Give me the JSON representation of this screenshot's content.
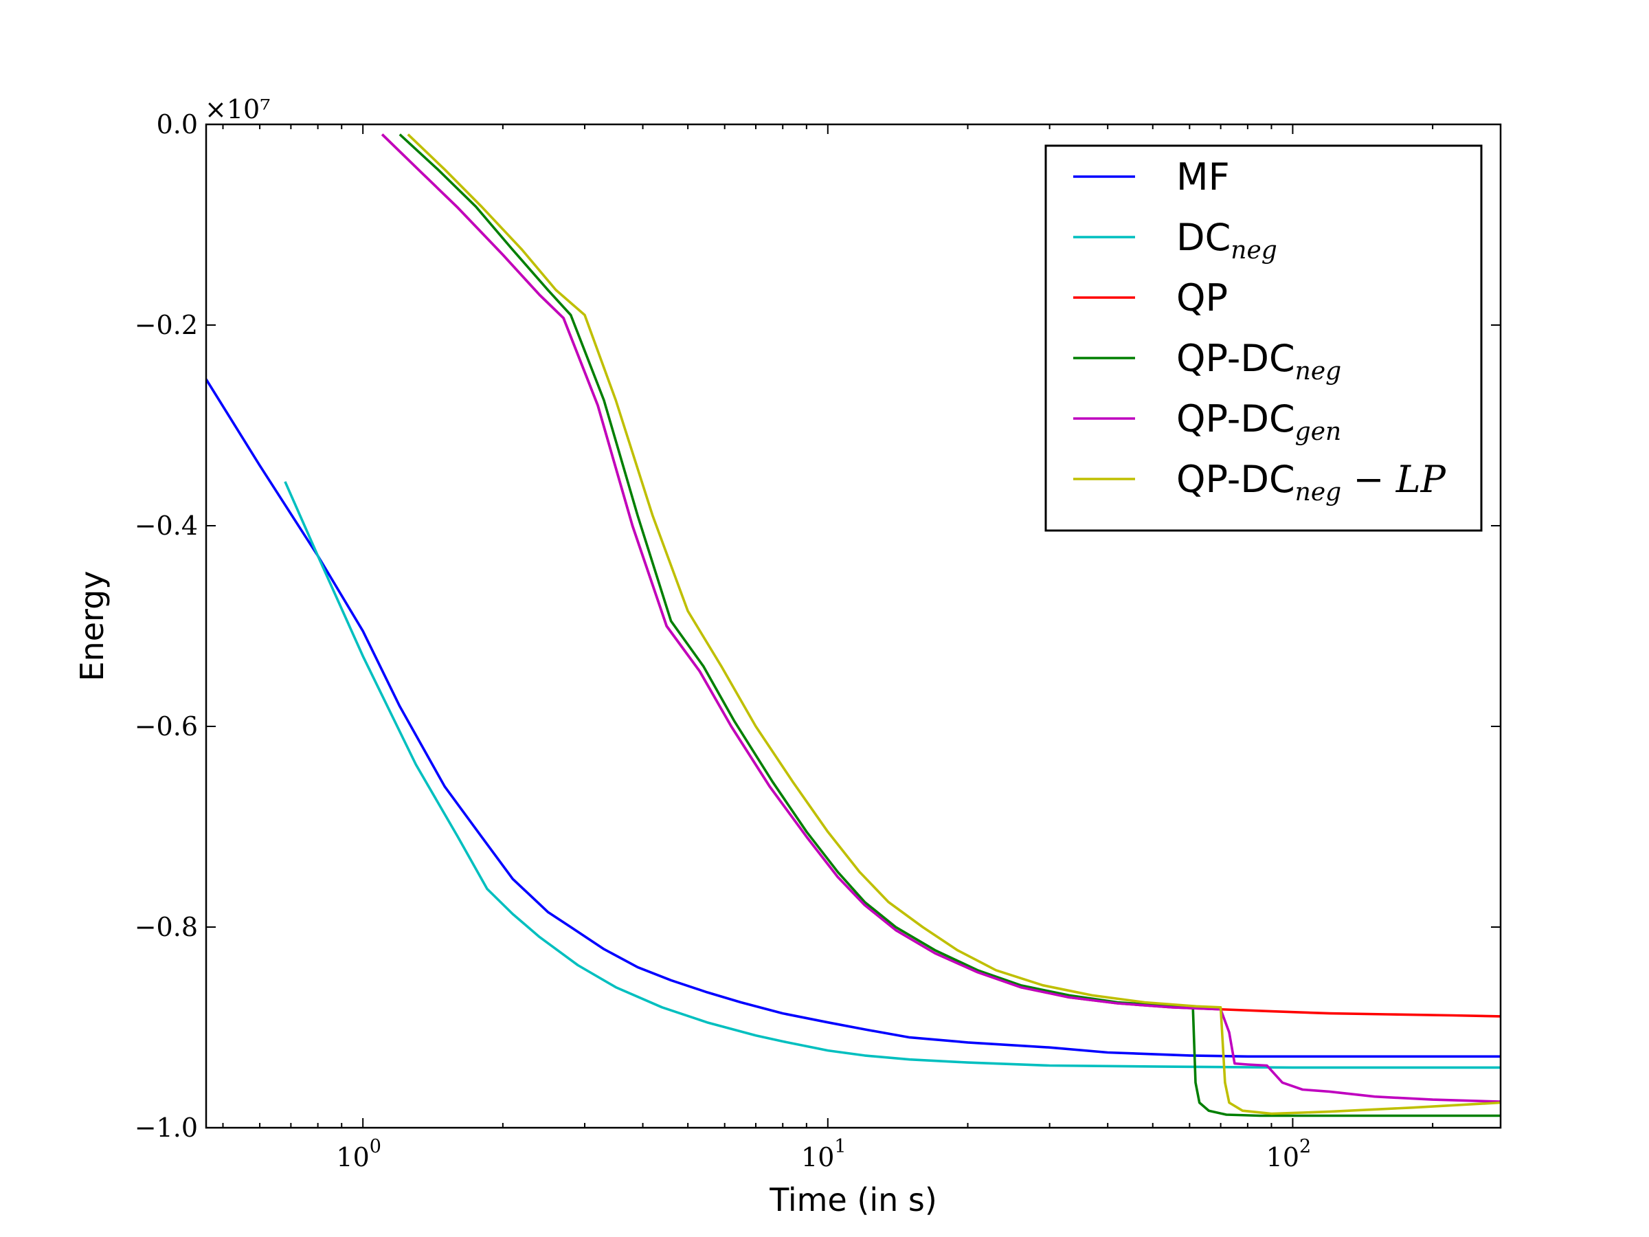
{
  "chart_data": {
    "type": "line",
    "title": "",
    "xlabel": "Time (in s)",
    "ylabel": "Energy",
    "xscale": "log",
    "xlim": [
      0.46,
      280
    ],
    "ylim": [
      -1.0,
      0.0
    ],
    "y_offset_label": "×10⁷",
    "x_ticks": [
      {
        "value": 1,
        "base": "10",
        "exp": "0"
      },
      {
        "value": 10,
        "base": "10",
        "exp": "1"
      },
      {
        "value": 100,
        "base": "10",
        "exp": "2"
      }
    ],
    "y_ticks": [
      {
        "value": 0.0,
        "label": "0.0"
      },
      {
        "value": -0.2,
        "label": "−0.2"
      },
      {
        "value": -0.4,
        "label": "−0.4"
      },
      {
        "value": -0.6,
        "label": "−0.6"
      },
      {
        "value": -0.8,
        "label": "−0.8"
      },
      {
        "value": -1.0,
        "label": "−1.0"
      }
    ],
    "grid": false,
    "legend_position": "top-right",
    "series": [
      {
        "name": "MF",
        "legend_main": "MF",
        "legend_sub": "",
        "legend_suffix": "",
        "color": "#0000ff",
        "x": [
          0.46,
          0.6,
          0.8,
          1.0,
          1.2,
          1.5,
          1.8,
          2.1,
          2.5,
          2.8,
          3.3,
          3.9,
          4.6,
          5.5,
          6.5,
          8,
          10,
          12,
          15,
          20,
          30,
          40,
          60,
          80,
          100,
          150,
          200,
          280
        ],
        "y": [
          -0.254,
          -0.34,
          -0.43,
          -0.505,
          -0.58,
          -0.66,
          -0.71,
          -0.752,
          -0.785,
          -0.8,
          -0.822,
          -0.84,
          -0.853,
          -0.865,
          -0.875,
          -0.886,
          -0.895,
          -0.902,
          -0.91,
          -0.915,
          -0.92,
          -0.925,
          -0.928,
          -0.929,
          -0.929,
          -0.929,
          -0.929,
          -0.929
        ]
      },
      {
        "name": "DC_neg",
        "legend_main": "DC",
        "legend_sub": "neg",
        "legend_suffix": "",
        "color": "#00bfbf",
        "x": [
          0.68,
          0.8,
          1.0,
          1.3,
          1.6,
          1.85,
          2.1,
          2.4,
          2.9,
          3.5,
          4.4,
          5.5,
          7,
          8,
          10,
          12,
          15,
          20,
          30,
          50,
          100,
          200,
          280
        ],
        "y": [
          -0.356,
          -0.43,
          -0.53,
          -0.638,
          -0.71,
          -0.762,
          -0.787,
          -0.81,
          -0.838,
          -0.86,
          -0.88,
          -0.895,
          -0.908,
          -0.914,
          -0.923,
          -0.928,
          -0.932,
          -0.935,
          -0.938,
          -0.939,
          -0.94,
          -0.94,
          -0.94
        ]
      },
      {
        "name": "QP",
        "legend_main": "QP",
        "legend_sub": "",
        "legend_suffix": "",
        "color": "#ff0000",
        "x": [
          1.1,
          1.35,
          1.6,
          2.0,
          2.4,
          2.7,
          3.2,
          3.8,
          4.5,
          5.3,
          6.2,
          7.5,
          9,
          10.5,
          12,
          14,
          17,
          21,
          26,
          33,
          42,
          55,
          70,
          90,
          120,
          160,
          220,
          280
        ],
        "y": [
          -0.01,
          -0.05,
          -0.083,
          -0.13,
          -0.17,
          -0.193,
          -0.28,
          -0.4,
          -0.5,
          -0.545,
          -0.6,
          -0.66,
          -0.71,
          -0.75,
          -0.778,
          -0.803,
          -0.826,
          -0.845,
          -0.86,
          -0.87,
          -0.876,
          -0.88,
          -0.882,
          -0.884,
          -0.886,
          -0.887,
          -0.888,
          -0.889
        ]
      },
      {
        "name": "QP-DC_neg",
        "legend_main": "QP-DC",
        "legend_sub": "neg",
        "legend_suffix": "",
        "color": "#007f00",
        "x": [
          1.2,
          1.45,
          1.75,
          2.1,
          2.5,
          2.8,
          3.3,
          3.9,
          4.6,
          5.4,
          6.3,
          7.6,
          9,
          10.5,
          12,
          14,
          17,
          21,
          26,
          33,
          42,
          55,
          61,
          61.8,
          63,
          66,
          72,
          85,
          120,
          200,
          280
        ],
        "y": [
          -0.01,
          -0.045,
          -0.082,
          -0.125,
          -0.165,
          -0.19,
          -0.275,
          -0.39,
          -0.495,
          -0.54,
          -0.595,
          -0.655,
          -0.705,
          -0.745,
          -0.775,
          -0.8,
          -0.823,
          -0.843,
          -0.858,
          -0.868,
          -0.875,
          -0.879,
          -0.88,
          -0.955,
          -0.975,
          -0.983,
          -0.987,
          -0.988,
          -0.988,
          -0.988,
          -0.988
        ]
      },
      {
        "name": "QP-DC_gen",
        "legend_main": "QP-DC",
        "legend_sub": "gen",
        "legend_suffix": "",
        "color": "#bf00bf",
        "x": [
          1.1,
          1.35,
          1.6,
          2.0,
          2.4,
          2.7,
          3.2,
          3.8,
          4.5,
          5.3,
          6.2,
          7.5,
          9,
          10.5,
          12,
          14,
          17,
          21,
          26,
          33,
          42,
          55,
          70,
          73,
          75,
          80,
          88,
          95,
          105,
          120,
          150,
          200,
          280
        ],
        "y": [
          -0.01,
          -0.05,
          -0.083,
          -0.13,
          -0.17,
          -0.193,
          -0.28,
          -0.4,
          -0.5,
          -0.545,
          -0.6,
          -0.66,
          -0.71,
          -0.75,
          -0.778,
          -0.803,
          -0.826,
          -0.845,
          -0.86,
          -0.87,
          -0.876,
          -0.88,
          -0.882,
          -0.905,
          -0.936,
          -0.937,
          -0.938,
          -0.955,
          -0.962,
          -0.964,
          -0.969,
          -0.972,
          -0.974
        ]
      },
      {
        "name": "QP-DC_neg - LP",
        "legend_main": "QP-DC",
        "legend_sub": "neg",
        "legend_suffix": " − LP",
        "color": "#bfbf00",
        "x": [
          1.25,
          1.5,
          1.8,
          2.2,
          2.6,
          3.0,
          3.5,
          4.2,
          5.0,
          5.9,
          7,
          8.4,
          10,
          11.7,
          13.5,
          16,
          19,
          23,
          29,
          37,
          48,
          62,
          70,
          71.5,
          73,
          78,
          90,
          120,
          180,
          280
        ],
        "y": [
          -0.01,
          -0.045,
          -0.082,
          -0.125,
          -0.165,
          -0.19,
          -0.275,
          -0.39,
          -0.485,
          -0.54,
          -0.6,
          -0.655,
          -0.705,
          -0.745,
          -0.775,
          -0.8,
          -0.823,
          -0.843,
          -0.858,
          -0.868,
          -0.875,
          -0.879,
          -0.88,
          -0.955,
          -0.975,
          -0.983,
          -0.986,
          -0.984,
          -0.98,
          -0.975
        ]
      }
    ]
  }
}
